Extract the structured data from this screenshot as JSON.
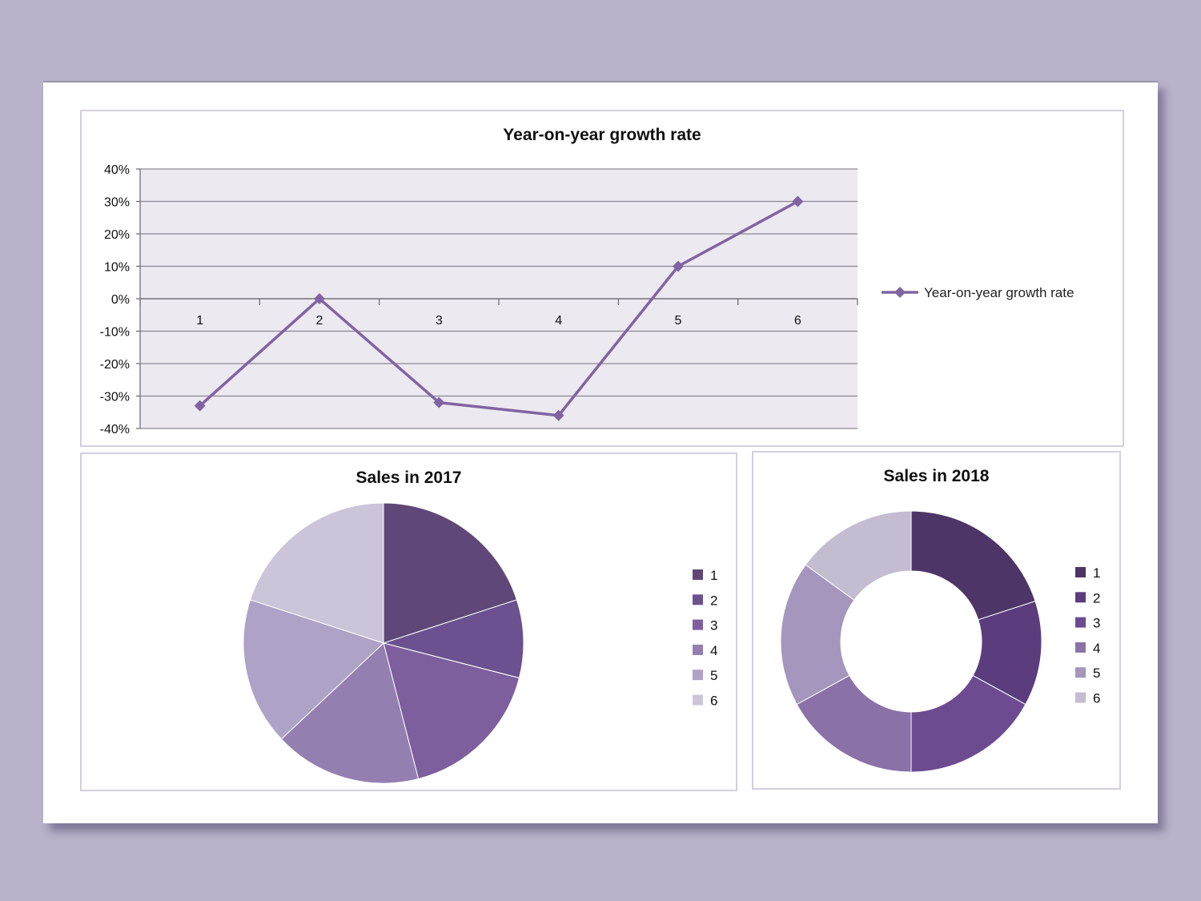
{
  "line_chart": {
    "title": "Year-on-year growth rate",
    "legend_label": "Year-on-year growth rate",
    "color": "#8064a2",
    "plot_bg": "#ece9f0"
  },
  "pie_chart": {
    "title": "Sales in 2017",
    "legend": [
      "1",
      "2",
      "3",
      "4",
      "5",
      "6"
    ]
  },
  "donut_chart": {
    "title": "Sales in 2018",
    "legend": [
      "1",
      "2",
      "3",
      "4",
      "5",
      "6"
    ]
  },
  "chart_data": [
    {
      "type": "line",
      "title": "Year-on-year growth rate",
      "categories": [
        "1",
        "2",
        "3",
        "4",
        "5",
        "6"
      ],
      "series": [
        {
          "name": "Year-on-year growth rate",
          "values": [
            -0.33,
            0.0,
            -0.32,
            -0.36,
            0.1,
            0.3
          ]
        }
      ],
      "ylim": [
        -0.4,
        0.4
      ],
      "yticks": [
        "40%",
        "30%",
        "20%",
        "10%",
        "0%",
        "-10%",
        "-20%",
        "-30%",
        "-40%"
      ],
      "grid": true,
      "legend": "right"
    },
    {
      "type": "pie",
      "title": "Sales in 2017",
      "labels": [
        "1",
        "2",
        "3",
        "4",
        "5",
        "6"
      ],
      "values": [
        20,
        9,
        17,
        17,
        17,
        20
      ],
      "colors": [
        "#5f4878",
        "#6b5190",
        "#7d5f9e",
        "#947fb1",
        "#aea2c7",
        "#ccc4d9"
      ],
      "legend": "right"
    },
    {
      "type": "pie",
      "subtype": "donut",
      "title": "Sales in 2018",
      "labels": [
        "1",
        "2",
        "3",
        "4",
        "5",
        "6"
      ],
      "values": [
        20,
        13,
        17,
        17,
        18,
        15
      ],
      "colors": [
        "#4d3567",
        "#5b3d7e",
        "#6d4b91",
        "#8a72a8",
        "#a596bd",
        "#c4bcd1"
      ],
      "legend": "right"
    }
  ]
}
